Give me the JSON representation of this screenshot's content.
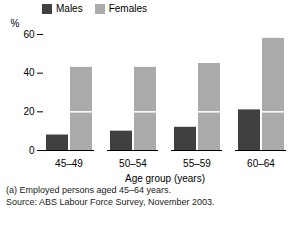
{
  "chart_data": {
    "type": "bar",
    "categories": [
      "45–49",
      "50–54",
      "55–59",
      "60–64"
    ],
    "series": [
      {
        "name": "Males",
        "color": "#404040",
        "values": [
          8,
          10,
          12,
          21
        ]
      },
      {
        "name": "Females",
        "color": "#aaaaaa",
        "values": [
          43,
          43,
          45,
          58
        ],
        "line_value": 20
      }
    ],
    "xlabel": "Age group (years)",
    "ylabel": "%",
    "ylim": [
      0,
      60
    ],
    "yticks": [
      0,
      20,
      40,
      60
    ],
    "grid": false,
    "legend": "upper left",
    "annotations": [
      "(a) Employed persons aged 45–64 years.",
      "Source: ABS Labour Force Survey, November 2003."
    ]
  }
}
